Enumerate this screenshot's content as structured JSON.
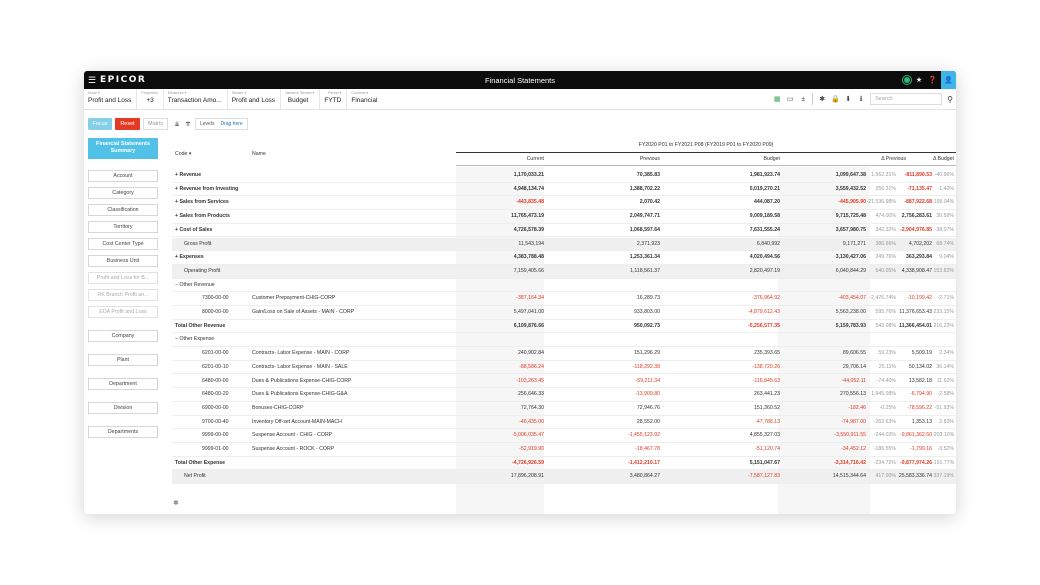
{
  "app": {
    "logo": "EPICOR",
    "title": "Financial Statements",
    "menu_icon": "hamburger-icon",
    "title_icons": [
      "status-dot-icon",
      "star-icon",
      "help-icon",
      "user-icon"
    ]
  },
  "toolbar": {
    "items": [
      {
        "caption": "Mode ▾",
        "value": "Profit and Loss"
      },
      {
        "caption": "Properties",
        "value": "+3"
      },
      {
        "caption": "Measures ▾",
        "value": "Transaction Amo..."
      },
      {
        "caption": "Stream ▾",
        "value": "Profit and Loss"
      },
      {
        "caption": "Variance Stream ▾",
        "value": "Budget"
      },
      {
        "caption": "Period ▾",
        "value": "FYTD"
      },
      {
        "caption": "Columns ▾",
        "value": "Financial"
      }
    ],
    "search_placeholder": "Search"
  },
  "controls": {
    "focus": "Focus",
    "reset": "Reset",
    "matrix": "Matrix",
    "levels": "Levels",
    "drag_here": "Drag here"
  },
  "sidebar": {
    "header": "Financial Statements\nSummary",
    "items": [
      "Account",
      "Category",
      "Classification",
      "Territory",
      "Cost Center Type",
      "Business Unit",
      "Profit and Loss for B...",
      "RK Branch Profit an...",
      "EDA Profit and Loss",
      "Company",
      "Plant",
      "Department",
      "Division",
      "Departments"
    ]
  },
  "table": {
    "period": "FY2020 P01 to FY2021 P08 (FY2019 P01 to FY2020 P09)",
    "code_header": "Code ▾",
    "name_header": "Name",
    "columns": [
      "Current",
      "Previous",
      "Budget",
      "",
      "Δ Previous",
      "",
      "Δ Budget"
    ],
    "rows": [
      {
        "code": "+  Revenue",
        "name": "",
        "current": "1,170,033.21",
        "previous": "70,385.83",
        "budget": "1,981,923.74",
        "dprev": "1,099,647.38",
        "dprev_pct": "1,562.31%",
        "dbud": "-811,890.53",
        "dbud_pct": "-40.96%",
        "style": "bold",
        "red": [
          "dbud"
        ]
      },
      {
        "code": "+  Revenue from Investing",
        "name": "",
        "current": "4,948,134.74",
        "previous": "1,388,702.22",
        "budget": "5,019,270.21",
        "dprev": "3,559,432.52",
        "dprev_pct": "256.31%",
        "dbud": "-71,135.47",
        "dbud_pct": "-1.42%",
        "style": "bold",
        "red": [
          "dbud"
        ]
      },
      {
        "code": "+  Sales from Services",
        "name": "",
        "current": "-443,835.48",
        "previous": "2,070.42",
        "budget": "444,087.20",
        "dprev": "-445,905.90",
        "dprev_pct": "-21,536.98%",
        "dbud": "-887,922.68",
        "dbud_pct": "-199.94%",
        "style": "bold",
        "red": [
          "current",
          "dprev",
          "dbud"
        ]
      },
      {
        "code": "+  Sales from Products",
        "name": "",
        "current": "11,765,473.19",
        "previous": "2,049,747.71",
        "budget": "9,009,189.58",
        "dprev": "9,715,725.48",
        "dprev_pct": "474.00%",
        "dbud": "2,756,283.61",
        "dbud_pct": "30.59%",
        "style": "bold",
        "red": []
      },
      {
        "code": "+  Cost of Sales",
        "name": "",
        "current": "4,726,578.39",
        "previous": "1,068,597.64",
        "budget": "7,631,555.24",
        "dprev": "3,657,980.75",
        "dprev_pct": "342.32%",
        "dbud": "-2,904,976.85",
        "dbud_pct": "-38.07%",
        "style": "bold",
        "red": [
          "dbud"
        ]
      },
      {
        "code": "Gross Profit",
        "name": "",
        "current": "11,543,194",
        "previous": "2,371,923",
        "budget": "6,840,992",
        "dprev": "9,171,271",
        "dprev_pct": "386.66%",
        "dbud": "4,702,202",
        "dbud_pct": "68.74%",
        "style": "gray",
        "red": []
      },
      {
        "code": "+  Expenses",
        "name": "",
        "current": "4,383,788.48",
        "previous": "1,253,361.34",
        "budget": "4,020,494.56",
        "dprev": "3,130,427.06",
        "dprev_pct": "249.76%",
        "dbud": "363,293.84",
        "dbud_pct": "9.04%",
        "style": "bold",
        "red": []
      },
      {
        "code": "Operating Profit",
        "name": "",
        "current": "7,159,405.66",
        "previous": "1,118,561.37",
        "budget": "2,820,497.19",
        "dprev": "6,040,844.29",
        "dprev_pct": "540.05%",
        "dbud": "4,338,908.47",
        "dbud_pct": "153.83%",
        "style": "gray",
        "red": []
      },
      {
        "code": "−  Other Revenue",
        "name": "",
        "current": "",
        "previous": "",
        "budget": "",
        "dprev": "",
        "dprev_pct": "",
        "dbud": "",
        "dbud_pct": "",
        "style": "",
        "red": []
      },
      {
        "code": "7300-00-00",
        "name": "Customer Prepayment-CHIG-CORP",
        "current": "-387,164.34",
        "previous": "16,289.73",
        "budget": "-376,964.92",
        "dprev": "-403,454.07",
        "dprev_pct": "-2,476.74%",
        "dbud": "-10,199.42",
        "dbud_pct": "-2.71%",
        "style": "detail",
        "red": [
          "current",
          "budget",
          "dprev",
          "dbud"
        ]
      },
      {
        "code": "8000-00-00",
        "name": "Gain/Loss on Sale of Assets - MAIN - CORP",
        "current": "5,497,041.00",
        "previous": "933,803.00",
        "budget": "-4,879,612.43",
        "dprev": "5,563,238.00",
        "dprev_pct": "595.76%",
        "dbud": "11,376,653.43",
        "dbud_pct": "233.15%",
        "style": "detail",
        "red": [
          "budget"
        ]
      },
      {
        "code": "Total Other Revenue",
        "name": "",
        "current": "6,109,876.66",
        "previous": "950,092.73",
        "budget": "-5,256,577.35",
        "dprev": "5,159,783.93",
        "dprev_pct": "543.08%",
        "dbud": "11,366,454.01",
        "dbud_pct": "216.23%",
        "style": "bold",
        "red": [
          "budget"
        ]
      },
      {
        "code": "−  Other Expense",
        "name": "",
        "current": "",
        "previous": "",
        "budget": "",
        "dprev": "",
        "dprev_pct": "",
        "dbud": "",
        "dbud_pct": "",
        "style": "",
        "red": []
      },
      {
        "code": "6201-00-00",
        "name": "Contracts- Labor Expense - MAIN - CORP",
        "current": "240,902.84",
        "previous": "151,296.29",
        "budget": "235,393.65",
        "dprev": "89,606.55",
        "dprev_pct": "59.23%",
        "dbud": "5,509.19",
        "dbud_pct": "2.34%",
        "style": "detail",
        "red": []
      },
      {
        "code": "6201-00-10",
        "name": "Contracts- Labor Expense - MAIN - SALE",
        "current": "-88,586.24",
        "previous": "-118,292.38",
        "budget": "-138,720.26",
        "dprev": "29,706.14",
        "dprev_pct": "25.11%",
        "dbud": "50,134.02",
        "dbud_pct": "36.14%",
        "style": "detail",
        "red": [
          "current",
          "previous",
          "budget"
        ]
      },
      {
        "code": "6480-00-00",
        "name": "Dues & Publications Expense-CHIG-CORP",
        "current": "-103,263.45",
        "previous": "-59,211.34",
        "budget": "-116,845.63",
        "dprev": "-44,052.11",
        "dprev_pct": "-74.40%",
        "dbud": "13,582.18",
        "dbud_pct": "11.62%",
        "style": "detail",
        "red": [
          "current",
          "previous",
          "budget",
          "dprev"
        ]
      },
      {
        "code": "6480-00-20",
        "name": "Dues & Publications Expense-CHIG-G&A",
        "current": "256,646.33",
        "previous": "-13,909.80",
        "budget": "263,441.23",
        "dprev": "270,556.13",
        "dprev_pct": "1,945.08%",
        "dbud": "-6,794.90",
        "dbud_pct": "-2.58%",
        "style": "detail",
        "red": [
          "previous",
          "dbud"
        ]
      },
      {
        "code": "6900-00-00",
        "name": "Bonuses-CHIG-CORP",
        "current": "72,764.30",
        "previous": "72,946.76",
        "budget": "151,360.52",
        "dprev": "-182.46",
        "dprev_pct": "-0.25%",
        "dbud": "-78,596.22",
        "dbud_pct": "-51.93%",
        "style": "detail",
        "red": [
          "dprev",
          "dbud"
        ]
      },
      {
        "code": "9700-00-40",
        "name": "Inventory Off-set Account-MAIN-MACH",
        "current": "-46,435.00",
        "previous": "28,552.00",
        "budget": "-47,788.13",
        "dprev": "-74,987.00",
        "dprev_pct": "-262.63%",
        "dbud": "1,353.13",
        "dbud_pct": "2.83%",
        "style": "detail",
        "red": [
          "current",
          "budget",
          "dprev"
        ]
      },
      {
        "code": "9999-00-00",
        "name": "Suspense Account - CHIG - CORP",
        "current": "-5,006,035.47",
        "previous": "-1,455,123.92",
        "budget": "4,855,327.03",
        "dprev": "-3,550,911.55",
        "dprev_pct": "-244.03%",
        "dbud": "-9,861,362.50",
        "dbud_pct": "-203.10%",
        "style": "detail",
        "red": [
          "current",
          "previous",
          "dprev",
          "dbud"
        ]
      },
      {
        "code": "9999-01-00",
        "name": "Suspense Account - ROCK - CORP",
        "current": "-52,919.90",
        "previous": "-18,467.78",
        "budget": "-51,120.74",
        "dprev": "-34,452.12",
        "dprev_pct": "-186.55%",
        "dbud": "-1,799.16",
        "dbud_pct": "-3.52%",
        "style": "detail",
        "red": [
          "current",
          "previous",
          "budget",
          "dprev",
          "dbud"
        ]
      },
      {
        "code": "Total Other Expense",
        "name": "",
        "current": "-4,726,926.59",
        "previous": "-1,412,210.17",
        "budget": "5,151,047.67",
        "dprev": "-3,314,716.42",
        "dprev_pct": "-234.72%",
        "dbud": "-9,877,974.26",
        "dbud_pct": "-191.77%",
        "style": "bold",
        "red": [
          "current",
          "previous",
          "dprev",
          "dbud"
        ]
      },
      {
        "code": "Net Profit",
        "name": "",
        "current": "17,896,208.91",
        "previous": "3,480,864.27",
        "budget": "-7,587,127.83",
        "dprev": "14,515,344.64",
        "dprev_pct": "417.00%",
        "dbud": "25,583,336.74",
        "dbud_pct": "337.19%",
        "style": "gray",
        "red": [
          "budget"
        ]
      }
    ]
  },
  "footer": {
    "icon": "gear-icon",
    "glyph": "✱"
  }
}
